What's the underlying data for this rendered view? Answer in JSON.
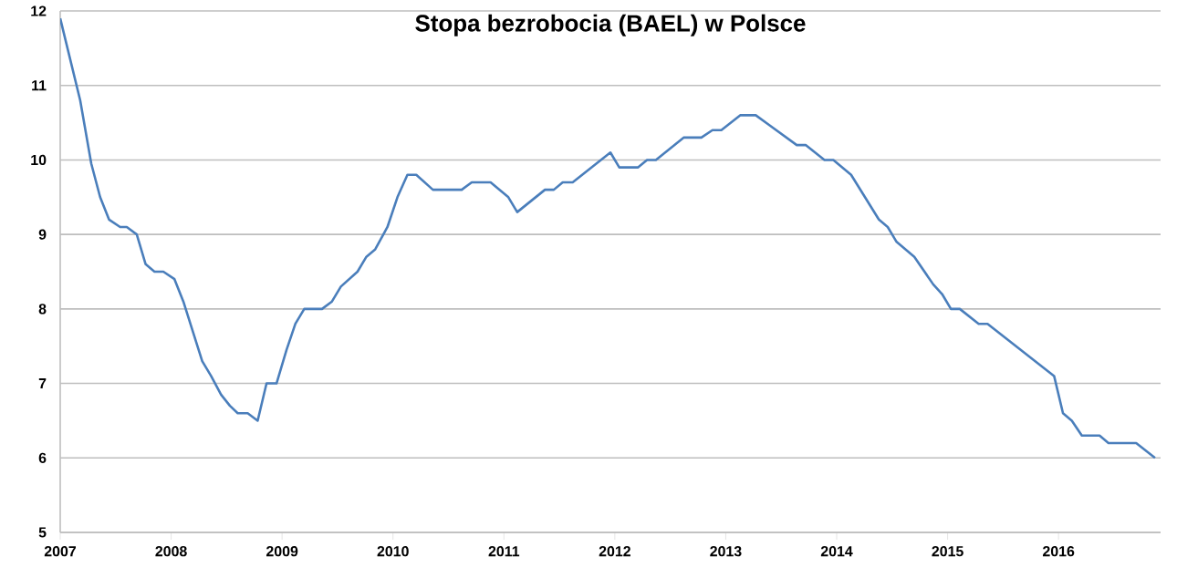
{
  "chart_data": {
    "type": "line",
    "title": "Stopa bezrobocia (BAEL) w Polsce",
    "xlim": [
      2007,
      2016.92
    ],
    "xticks": [
      2007,
      2008,
      2009,
      2010,
      2011,
      2012,
      2013,
      2014,
      2015,
      2016
    ],
    "ylim": [
      5,
      12
    ],
    "yticks": [
      5,
      6,
      7,
      8,
      9,
      10,
      11,
      12
    ],
    "grid": "y",
    "legend": false,
    "marker": "none",
    "line_style": "solid",
    "series": [
      {
        "color": "#4a7ebb",
        "x": [
          2007.0,
          2007.18,
          2007.28,
          2007.36,
          2007.44,
          2007.54,
          2007.6,
          2007.69,
          2007.77,
          2007.85,
          2007.93,
          2008.03,
          2008.11,
          2008.28,
          2008.36,
          2008.45,
          2008.53,
          2008.6,
          2008.69,
          2008.78,
          2008.86,
          2008.95,
          2009.04,
          2009.12,
          2009.2,
          2009.36,
          2009.45,
          2009.53,
          2009.68,
          2009.76,
          2009.84,
          2009.95,
          2010.04,
          2010.13,
          2010.21,
          2010.36,
          2010.62,
          2010.71,
          2010.88,
          2011.04,
          2011.12,
          2011.37,
          2011.45,
          2011.53,
          2011.62,
          2011.96,
          2012.04,
          2012.21,
          2012.29,
          2012.37,
          2012.62,
          2012.78,
          2012.88,
          2012.96,
          2013.13,
          2013.27,
          2013.39,
          2013.64,
          2013.72,
          2013.89,
          2013.97,
          2014.13,
          2014.38,
          2014.46,
          2014.54,
          2014.7,
          2014.87,
          2014.95,
          2015.03,
          2015.11,
          2015.28,
          2015.36,
          2015.96,
          2016.04,
          2016.12,
          2016.21,
          2016.37,
          2016.45,
          2016.7,
          2016.87
        ],
        "values": [
          11.9,
          10.8,
          9.95,
          9.5,
          9.2,
          9.1,
          9.1,
          9.0,
          8.6,
          8.5,
          8.5,
          8.4,
          8.1,
          7.3,
          7.1,
          6.85,
          6.7,
          6.6,
          6.6,
          6.5,
          7.0,
          7.0,
          7.45,
          7.8,
          8.0,
          8.0,
          8.1,
          8.3,
          8.5,
          8.7,
          8.8,
          9.1,
          9.5,
          9.8,
          9.8,
          9.6,
          9.6,
          9.7,
          9.7,
          9.5,
          9.3,
          9.6,
          9.6,
          9.7,
          9.7,
          10.1,
          9.9,
          9.9,
          10.0,
          10.0,
          10.3,
          10.3,
          10.4,
          10.4,
          10.6,
          10.6,
          10.47,
          10.2,
          10.2,
          10.0,
          10.0,
          9.8,
          9.2,
          9.1,
          8.9,
          8.7,
          8.33,
          8.2,
          8.0,
          8.0,
          7.8,
          7.8,
          7.1,
          6.6,
          6.5,
          6.3,
          6.3,
          6.2,
          6.2,
          6.0
        ]
      }
    ]
  }
}
